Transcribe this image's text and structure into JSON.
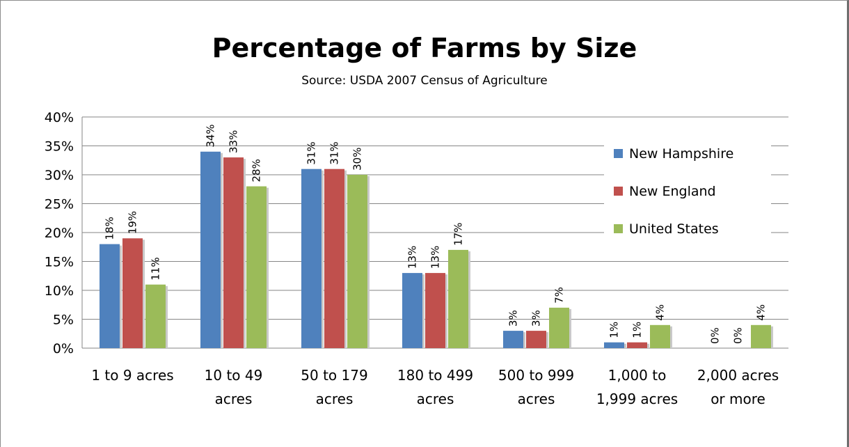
{
  "chart_data": {
    "type": "bar",
    "title": "Percentage of Farms by Size",
    "subtitle": "Source: USDA 2007 Census of Agriculture",
    "xlabel": "",
    "ylabel": "",
    "ylim": [
      0,
      40
    ],
    "y_ticks": [
      "0%",
      "5%",
      "10%",
      "15%",
      "20%",
      "25%",
      "30%",
      "35%",
      "40%"
    ],
    "grid": true,
    "legend_position": "right",
    "categories": [
      [
        "1 to 9 acres"
      ],
      [
        "10 to 49",
        "acres"
      ],
      [
        "50 to 179",
        "acres"
      ],
      [
        "180 to 499",
        "acres"
      ],
      [
        "500 to 999",
        "acres"
      ],
      [
        "1,000 to",
        "1,999 acres"
      ],
      [
        "2,000 acres",
        "or more"
      ]
    ],
    "series": [
      {
        "name": "New Hampshire",
        "color": "#4f81bd",
        "values": [
          18,
          34,
          31,
          13,
          3,
          1,
          0
        ],
        "labels": [
          "18%",
          "34%",
          "31%",
          "13%",
          "3%",
          "1%",
          "0%"
        ]
      },
      {
        "name": "New England",
        "color": "#c0504d",
        "values": [
          19,
          33,
          31,
          13,
          3,
          1,
          0
        ],
        "labels": [
          "19%",
          "33%",
          "31%",
          "13%",
          "3%",
          "1%",
          "0%"
        ]
      },
      {
        "name": "United States",
        "color": "#9bbb59",
        "values": [
          11,
          28,
          30,
          17,
          7,
          4,
          4
        ],
        "labels": [
          "11%",
          "28%",
          "30%",
          "17%",
          "7%",
          "4%",
          "4%"
        ]
      }
    ]
  }
}
